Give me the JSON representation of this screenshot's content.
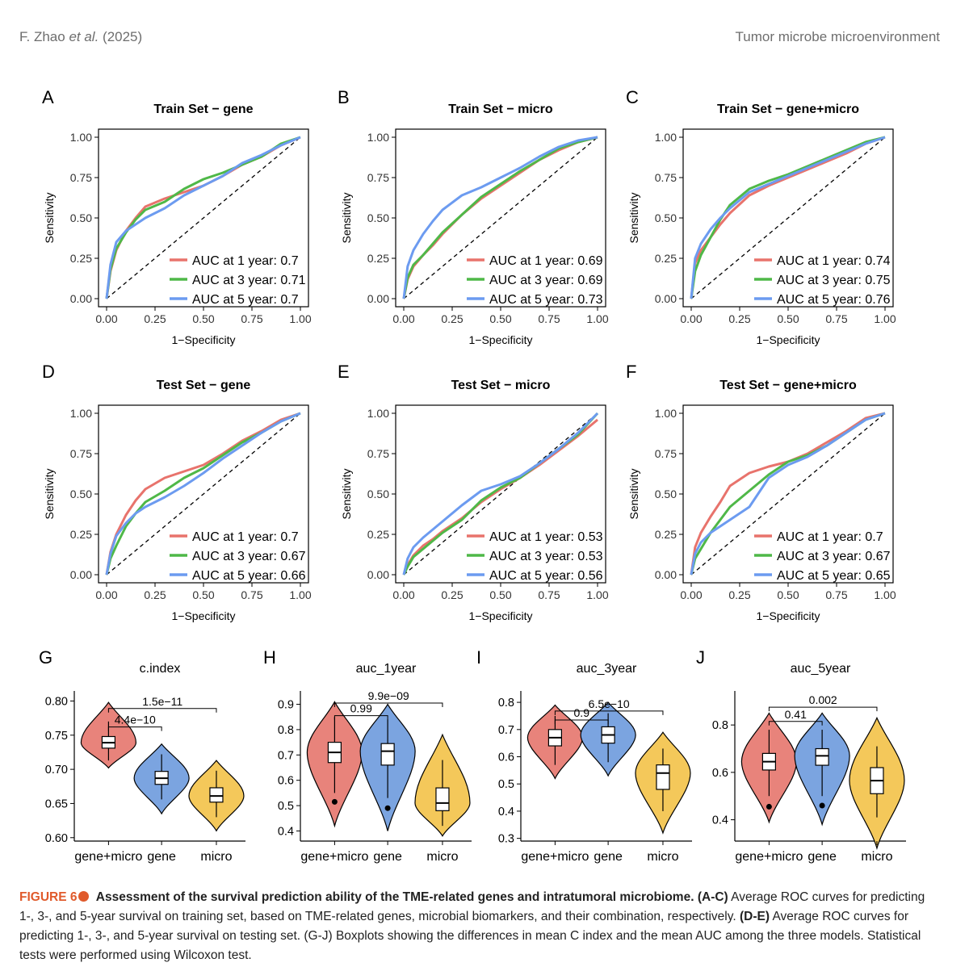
{
  "header": {
    "author": "F. Zhao",
    "etal": "et al.",
    "year": "(2025)",
    "journal": "Tumor microbe microenvironment"
  },
  "colors": {
    "year1": "#e8736c",
    "year3": "#4fb848",
    "year5": "#6c9bf0",
    "gene_micro": "#e8837b",
    "gene": "#7ba4e0",
    "micro": "#f4c85a",
    "caption_accent": "#e05a2b"
  },
  "roc_axes": {
    "xlabel": "1−Specificity",
    "ylabel": "Sensitivity",
    "ticks": [
      "0.00",
      "0.25",
      "0.50",
      "0.75",
      "1.00"
    ]
  },
  "chart_data": [
    {
      "type": "line",
      "panel": "A",
      "title": "Train Set − gene",
      "xlim": [
        0,
        1
      ],
      "ylim": [
        0,
        1
      ],
      "series": [
        {
          "name": "AUC at 1 year: 0.7",
          "x": [
            0,
            0.02,
            0.05,
            0.1,
            0.15,
            0.2,
            0.3,
            0.4,
            0.5,
            0.6,
            0.7,
            0.8,
            0.9,
            1
          ],
          "y": [
            0,
            0.17,
            0.3,
            0.42,
            0.5,
            0.57,
            0.62,
            0.66,
            0.7,
            0.76,
            0.83,
            0.88,
            0.95,
            1
          ]
        },
        {
          "name": "AUC at 3 year: 0.71",
          "x": [
            0,
            0.02,
            0.05,
            0.1,
            0.15,
            0.2,
            0.3,
            0.4,
            0.5,
            0.6,
            0.7,
            0.8,
            0.9,
            1
          ],
          "y": [
            0,
            0.18,
            0.31,
            0.41,
            0.49,
            0.55,
            0.6,
            0.68,
            0.74,
            0.78,
            0.83,
            0.88,
            0.96,
            1
          ]
        },
        {
          "name": "AUC at 5 year: 0.7",
          "x": [
            0,
            0.02,
            0.05,
            0.1,
            0.15,
            0.2,
            0.3,
            0.4,
            0.5,
            0.6,
            0.7,
            0.8,
            0.9,
            1
          ],
          "y": [
            0,
            0.21,
            0.35,
            0.42,
            0.46,
            0.5,
            0.56,
            0.64,
            0.7,
            0.76,
            0.84,
            0.89,
            0.95,
            1
          ]
        }
      ]
    },
    {
      "type": "line",
      "panel": "B",
      "title": "Train Set − micro",
      "xlim": [
        0,
        1
      ],
      "ylim": [
        0,
        1
      ],
      "series": [
        {
          "name": "AUC at 1 year: 0.69",
          "x": [
            0,
            0.02,
            0.05,
            0.1,
            0.15,
            0.2,
            0.3,
            0.4,
            0.5,
            0.6,
            0.7,
            0.8,
            0.9,
            1
          ],
          "y": [
            0,
            0.12,
            0.2,
            0.27,
            0.33,
            0.4,
            0.52,
            0.62,
            0.7,
            0.78,
            0.86,
            0.92,
            0.97,
            1
          ]
        },
        {
          "name": "AUC at 3 year: 0.69",
          "x": [
            0,
            0.02,
            0.05,
            0.1,
            0.15,
            0.2,
            0.3,
            0.4,
            0.5,
            0.6,
            0.7,
            0.8,
            0.9,
            1
          ],
          "y": [
            0,
            0.13,
            0.21,
            0.27,
            0.34,
            0.41,
            0.52,
            0.63,
            0.71,
            0.79,
            0.86,
            0.93,
            0.97,
            1
          ]
        },
        {
          "name": "AUC at 5 year: 0.73",
          "x": [
            0,
            0.02,
            0.05,
            0.1,
            0.15,
            0.2,
            0.3,
            0.4,
            0.5,
            0.6,
            0.7,
            0.8,
            0.9,
            1
          ],
          "y": [
            0,
            0.2,
            0.3,
            0.4,
            0.48,
            0.55,
            0.64,
            0.69,
            0.75,
            0.81,
            0.88,
            0.94,
            0.98,
            1
          ]
        }
      ]
    },
    {
      "type": "line",
      "panel": "C",
      "title": "Train Set − gene+micro",
      "xlim": [
        0,
        1
      ],
      "ylim": [
        0,
        1
      ],
      "series": [
        {
          "name": "AUC at 1 year: 0.74",
          "x": [
            0,
            0.02,
            0.05,
            0.1,
            0.15,
            0.2,
            0.3,
            0.4,
            0.5,
            0.6,
            0.7,
            0.8,
            0.9,
            1
          ],
          "y": [
            0,
            0.22,
            0.3,
            0.38,
            0.46,
            0.53,
            0.64,
            0.7,
            0.75,
            0.8,
            0.85,
            0.9,
            0.96,
            1
          ]
        },
        {
          "name": "AUC at 3 year: 0.75",
          "x": [
            0,
            0.02,
            0.05,
            0.1,
            0.15,
            0.2,
            0.3,
            0.4,
            0.5,
            0.6,
            0.7,
            0.8,
            0.9,
            1
          ],
          "y": [
            0,
            0.17,
            0.27,
            0.38,
            0.49,
            0.58,
            0.68,
            0.73,
            0.77,
            0.82,
            0.87,
            0.92,
            0.97,
            1
          ]
        },
        {
          "name": "AUC at 5 year: 0.76",
          "x": [
            0,
            0.02,
            0.05,
            0.1,
            0.15,
            0.2,
            0.3,
            0.4,
            0.5,
            0.6,
            0.7,
            0.8,
            0.9,
            1
          ],
          "y": [
            0,
            0.25,
            0.34,
            0.43,
            0.5,
            0.56,
            0.66,
            0.71,
            0.76,
            0.81,
            0.86,
            0.91,
            0.96,
            1
          ]
        }
      ]
    },
    {
      "type": "line",
      "panel": "D",
      "title": "Test Set − gene",
      "xlim": [
        0,
        1
      ],
      "ylim": [
        0,
        1
      ],
      "series": [
        {
          "name": "AUC at 1 year: 0.7",
          "x": [
            0,
            0.02,
            0.05,
            0.1,
            0.15,
            0.2,
            0.3,
            0.4,
            0.5,
            0.6,
            0.7,
            0.8,
            0.9,
            1
          ],
          "y": [
            0,
            0.14,
            0.25,
            0.37,
            0.46,
            0.53,
            0.6,
            0.64,
            0.68,
            0.75,
            0.83,
            0.89,
            0.96,
            1
          ]
        },
        {
          "name": "AUC at 3 year: 0.67",
          "x": [
            0,
            0.02,
            0.05,
            0.1,
            0.15,
            0.2,
            0.3,
            0.4,
            0.5,
            0.6,
            0.7,
            0.8,
            0.9,
            1
          ],
          "y": [
            0,
            0.1,
            0.18,
            0.3,
            0.38,
            0.45,
            0.52,
            0.6,
            0.66,
            0.74,
            0.82,
            0.88,
            0.95,
            1
          ]
        },
        {
          "name": "AUC at 5 year: 0.66",
          "x": [
            0,
            0.02,
            0.05,
            0.1,
            0.15,
            0.2,
            0.3,
            0.4,
            0.5,
            0.6,
            0.7,
            0.8,
            0.9,
            1
          ],
          "y": [
            0,
            0.13,
            0.24,
            0.32,
            0.38,
            0.42,
            0.48,
            0.55,
            0.63,
            0.72,
            0.8,
            0.88,
            0.95,
            1
          ]
        }
      ]
    },
    {
      "type": "line",
      "panel": "E",
      "title": "Test Set − micro",
      "xlim": [
        0,
        1
      ],
      "ylim": [
        0,
        1
      ],
      "series": [
        {
          "name": "AUC at 1 year: 0.53",
          "x": [
            0,
            0.02,
            0.05,
            0.1,
            0.15,
            0.2,
            0.3,
            0.4,
            0.5,
            0.6,
            0.7,
            0.8,
            0.9,
            1
          ],
          "y": [
            0,
            0.06,
            0.12,
            0.18,
            0.22,
            0.27,
            0.35,
            0.45,
            0.53,
            0.6,
            0.68,
            0.77,
            0.86,
            0.96
          ]
        },
        {
          "name": "AUC at 3 year: 0.53",
          "x": [
            0,
            0.02,
            0.05,
            0.1,
            0.15,
            0.2,
            0.3,
            0.4,
            0.5,
            0.6,
            0.7,
            0.8,
            0.9,
            1
          ],
          "y": [
            0,
            0.05,
            0.11,
            0.16,
            0.21,
            0.26,
            0.34,
            0.46,
            0.54,
            0.6,
            0.69,
            0.78,
            0.87,
            1
          ]
        },
        {
          "name": "AUC at 5 year: 0.56",
          "x": [
            0,
            0.02,
            0.05,
            0.1,
            0.15,
            0.2,
            0.3,
            0.4,
            0.5,
            0.6,
            0.7,
            0.8,
            0.9,
            1
          ],
          "y": [
            0,
            0.1,
            0.17,
            0.23,
            0.28,
            0.33,
            0.43,
            0.52,
            0.56,
            0.61,
            0.69,
            0.78,
            0.88,
            1
          ]
        }
      ]
    },
    {
      "type": "line",
      "panel": "F",
      "title": "Test Set − gene+micro",
      "xlim": [
        0,
        1
      ],
      "ylim": [
        0,
        1
      ],
      "series": [
        {
          "name": "AUC at 1 year: 0.7",
          "x": [
            0,
            0.02,
            0.05,
            0.1,
            0.15,
            0.2,
            0.3,
            0.4,
            0.5,
            0.6,
            0.7,
            0.8,
            0.9,
            1
          ],
          "y": [
            0,
            0.17,
            0.26,
            0.36,
            0.45,
            0.55,
            0.63,
            0.67,
            0.7,
            0.75,
            0.82,
            0.89,
            0.97,
            1
          ]
        },
        {
          "name": "AUC at 3 year: 0.67",
          "x": [
            0,
            0.02,
            0.05,
            0.1,
            0.15,
            0.2,
            0.3,
            0.4,
            0.5,
            0.6,
            0.7,
            0.8,
            0.9,
            1
          ],
          "y": [
            0,
            0.1,
            0.16,
            0.26,
            0.34,
            0.42,
            0.52,
            0.62,
            0.7,
            0.74,
            0.8,
            0.88,
            0.96,
            1
          ]
        },
        {
          "name": "AUC at 5 year: 0.65",
          "x": [
            0,
            0.02,
            0.05,
            0.1,
            0.15,
            0.2,
            0.3,
            0.4,
            0.5,
            0.6,
            0.7,
            0.8,
            0.9,
            1
          ],
          "y": [
            0,
            0.13,
            0.2,
            0.26,
            0.3,
            0.34,
            0.42,
            0.6,
            0.68,
            0.73,
            0.8,
            0.88,
            0.96,
            1
          ]
        }
      ]
    },
    {
      "type": "violin",
      "panel": "G",
      "title": "c.index",
      "categories": [
        "gene+micro",
        "gene",
        "micro"
      ],
      "yticks": [
        0.6,
        0.65,
        0.7,
        0.75,
        0.8
      ],
      "ylim": [
        0.595,
        0.81
      ],
      "ytick_labels": [
        "0.60",
        "0.65",
        "0.70",
        "0.75",
        "0.80"
      ],
      "groups": [
        {
          "name": "gene+micro",
          "violin": [
            0.702,
            0.798
          ],
          "q1": 0.731,
          "median": 0.739,
          "q3": 0.748,
          "wlo": 0.713,
          "whi": 0.77,
          "outliers": []
        },
        {
          "name": "gene",
          "violin": [
            0.635,
            0.737
          ],
          "q1": 0.678,
          "median": 0.687,
          "q3": 0.697,
          "wlo": 0.656,
          "whi": 0.722,
          "outliers": []
        },
        {
          "name": "micro",
          "violin": [
            0.61,
            0.713
          ],
          "q1": 0.652,
          "median": 0.661,
          "q3": 0.673,
          "wlo": 0.63,
          "whi": 0.698,
          "outliers": []
        }
      ],
      "comparisons": [
        {
          "groups": [
            0,
            2
          ],
          "label": "1.5e−11",
          "y": 0.789
        },
        {
          "groups": [
            0,
            1
          ],
          "label": "4.4e−10",
          "y": 0.762
        }
      ]
    },
    {
      "type": "violin",
      "panel": "H",
      "title": "auc_1year",
      "categories": [
        "gene+micro",
        "gene",
        "micro"
      ],
      "yticks": [
        0.4,
        0.5,
        0.6,
        0.7,
        0.8,
        0.9
      ],
      "ylim": [
        0.36,
        0.94
      ],
      "ytick_labels": [
        "0.4",
        "0.5",
        "0.6",
        "0.7",
        "0.8",
        "0.9"
      ],
      "groups": [
        {
          "name": "gene+micro",
          "violin": [
            0.42,
            0.91
          ],
          "q1": 0.67,
          "median": 0.71,
          "q3": 0.75,
          "wlo": 0.55,
          "whi": 0.85,
          "outliers": [
            0.515
          ]
        },
        {
          "name": "gene",
          "violin": [
            0.4,
            0.9
          ],
          "q1": 0.66,
          "median": 0.715,
          "q3": 0.745,
          "wlo": 0.53,
          "whi": 0.84,
          "outliers": [
            0.49
          ]
        },
        {
          "name": "micro",
          "violin": [
            0.38,
            0.78
          ],
          "q1": 0.48,
          "median": 0.51,
          "q3": 0.57,
          "wlo": 0.42,
          "whi": 0.68,
          "outliers": []
        }
      ],
      "comparisons": [
        {
          "groups": [
            0,
            2
          ],
          "label": "9.9e−09",
          "y": 0.905
        },
        {
          "groups": [
            0,
            1
          ],
          "label": "0.99",
          "y": 0.855
        }
      ]
    },
    {
      "type": "violin",
      "panel": "I",
      "title": "auc_3year",
      "categories": [
        "gene+micro",
        "gene",
        "micro"
      ],
      "yticks": [
        0.3,
        0.4,
        0.5,
        0.6,
        0.7,
        0.8
      ],
      "ylim": [
        0.29,
        0.83
      ],
      "ytick_labels": [
        "0.3",
        "0.4",
        "0.5",
        "0.6",
        "0.7",
        "0.8"
      ],
      "groups": [
        {
          "name": "gene+micro",
          "violin": [
            0.52,
            0.79
          ],
          "q1": 0.64,
          "median": 0.67,
          "q3": 0.7,
          "wlo": 0.57,
          "whi": 0.75,
          "outliers": []
        },
        {
          "name": "gene",
          "violin": [
            0.53,
            0.8
          ],
          "q1": 0.65,
          "median": 0.68,
          "q3": 0.71,
          "wlo": 0.58,
          "whi": 0.76,
          "outliers": []
        },
        {
          "name": "micro",
          "violin": [
            0.32,
            0.69
          ],
          "q1": 0.48,
          "median": 0.54,
          "q3": 0.57,
          "wlo": 0.4,
          "whi": 0.63,
          "outliers": []
        }
      ],
      "comparisons": [
        {
          "groups": [
            0,
            2
          ],
          "label": "6.5e−10",
          "y": 0.768
        },
        {
          "groups": [
            0,
            1
          ],
          "label": "0.9",
          "y": 0.735
        }
      ]
    },
    {
      "type": "violin",
      "panel": "J",
      "title": "auc_5year",
      "categories": [
        "gene+micro",
        "gene",
        "micro"
      ],
      "yticks": [
        0.4,
        0.6,
        0.8
      ],
      "ylim": [
        0.31,
        0.93
      ],
      "ytick_labels": [
        "0.4",
        "0.6",
        "0.8"
      ],
      "groups": [
        {
          "name": "gene+micro",
          "violin": [
            0.39,
            0.85
          ],
          "q1": 0.61,
          "median": 0.645,
          "q3": 0.68,
          "wlo": 0.5,
          "whi": 0.78,
          "outliers": [
            0.455
          ]
        },
        {
          "name": "gene",
          "violin": [
            0.38,
            0.85
          ],
          "q1": 0.63,
          "median": 0.67,
          "q3": 0.7,
          "wlo": 0.5,
          "whi": 0.78,
          "outliers": [
            0.46
          ]
        },
        {
          "name": "micro",
          "violin": [
            0.28,
            0.83
          ],
          "q1": 0.51,
          "median": 0.565,
          "q3": 0.62,
          "wlo": 0.41,
          "whi": 0.71,
          "outliers": []
        }
      ],
      "comparisons": [
        {
          "groups": [
            0,
            2
          ],
          "label": "0.002",
          "y": 0.875
        },
        {
          "groups": [
            0,
            1
          ],
          "label": "0.41",
          "y": 0.815
        }
      ]
    }
  ],
  "caption": {
    "label": "FIGURE 6",
    "title": "Assessment of the survival prediction ability of the TME-related genes and intratumoral microbiome",
    "part1_label": "(A-C)",
    "part1_text": "Average ROC curves for predicting 1-, 3-, and 5-year survival on training set, based on TME-related genes, microbial biomarkers, and their combination, respectively.",
    "part2_label": "(D-E)",
    "part2_text": "Average ROC curves for predicting 1-, 3-, and 5-year survival on testing set. (G-J) Boxplots showing the differences in mean C index and the mean AUC among the three models. Statistical tests were performed using Wilcoxon test."
  }
}
